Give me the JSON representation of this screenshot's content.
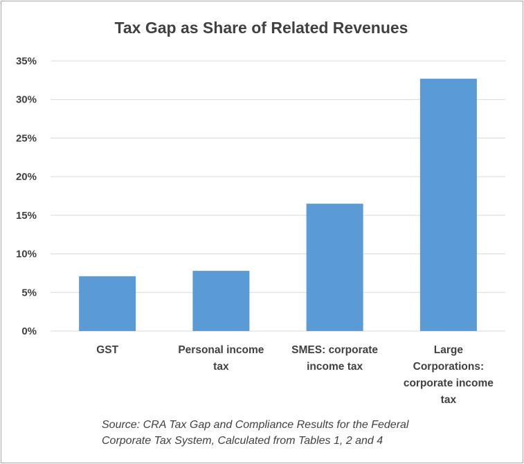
{
  "chart_data": {
    "type": "bar",
    "title": "Tax Gap as Share of Related  Revenues",
    "categories": [
      [
        "GST"
      ],
      [
        "Personal income",
        "tax"
      ],
      [
        "SMES: corporate",
        "income tax"
      ],
      [
        "Large",
        "Corporations:",
        "corporate income",
        "tax"
      ]
    ],
    "values": [
      7.1,
      7.8,
      16.5,
      32.7
    ],
    "yticks": [
      "0%",
      "5%",
      "10%",
      "15%",
      "20%",
      "25%",
      "30%",
      "35%"
    ],
    "ylim": [
      0,
      35
    ],
    "grid": true,
    "bar_color": "#5b9bd5",
    "grid_color": "#d9d9d9"
  },
  "source_note": {
    "line1": "Source: CRA Tax Gap and Compliance Results for the Federal",
    "line2": "Corporate Tax System,  Calculated from Tables 1, 2 and 4"
  }
}
